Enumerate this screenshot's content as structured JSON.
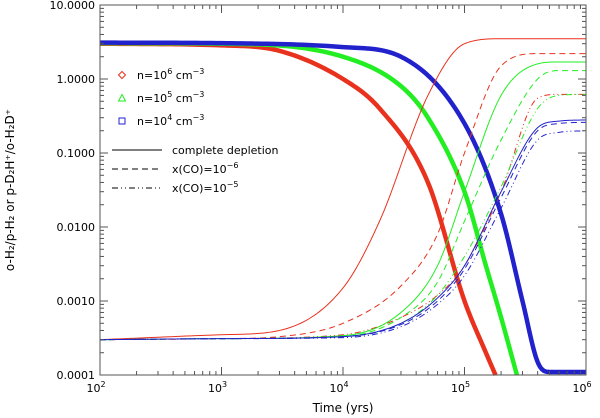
{
  "chart_data": {
    "type": "line",
    "title": "",
    "xlabel": "Time (yrs)",
    "ylabel": "o-H₂/p-H₂ or p-D₂H⁺/o-H₂D⁺",
    "xscale": "log",
    "yscale": "log",
    "xlim": [
      100,
      1000000
    ],
    "ylim": [
      0.0001,
      10
    ],
    "x_ticks": [
      {
        "value": 100,
        "base": "10",
        "exp": "2"
      },
      {
        "value": 1000,
        "base": "10",
        "exp": "3"
      },
      {
        "value": 10000,
        "base": "10",
        "exp": "4"
      },
      {
        "value": 100000,
        "base": "10",
        "exp": "5"
      },
      {
        "value": 1000000,
        "base": "10",
        "exp": "6"
      }
    ],
    "y_ticks": [
      {
        "value": 0.0001,
        "label": "0.0001"
      },
      {
        "value": 0.001,
        "label": "0.0010"
      },
      {
        "value": 0.01,
        "label": "0.0100"
      },
      {
        "value": 0.1,
        "label": "0.1000"
      },
      {
        "value": 1,
        "label": "1.0000"
      },
      {
        "value": 10,
        "label": "10.0000"
      }
    ],
    "colors": {
      "n1e6": "#e8321e",
      "n1e5": "#22ee22",
      "n1e4": "#2222cc"
    },
    "legend": {
      "placement": "top-left",
      "density_entries": [
        {
          "prefix": "n=10",
          "exp": "6",
          "suffix": " cm",
          "unit_exp": "−3",
          "symbol": "diamond",
          "color": "#e8321e"
        },
        {
          "prefix": "n=10",
          "exp": "5",
          "suffix": " cm",
          "unit_exp": "−3",
          "symbol": "triangle",
          "color": "#22ee22"
        },
        {
          "prefix": "n=10",
          "exp": "4",
          "suffix": " cm",
          "unit_exp": "−3",
          "symbol": "square",
          "color": "#2222cc"
        }
      ],
      "style_entries": [
        {
          "text": "complete depletion",
          "style": "solid"
        },
        {
          "text": "x(CO)=10",
          "exp": "−6",
          "style": "dashed"
        },
        {
          "text": "x(CO)=10",
          "exp": "−5",
          "style": "dashdot"
        }
      ]
    },
    "series": [
      {
        "name": "o-H2/p-H2, n=10^6 cm^-3",
        "color": "#e8321e",
        "style": "thick",
        "x": [
          100,
          1000,
          3000,
          10000,
          20000,
          50000,
          100000,
          150000,
          180000
        ],
        "y": [
          3.0,
          2.85,
          2.4,
          1.0,
          0.4,
          0.04,
          0.001,
          0.0002,
          0.0001
        ]
      },
      {
        "name": "o-H2/p-H2, n=10^5 cm^-3",
        "color": "#22ee22",
        "style": "thick",
        "x": [
          100,
          1000,
          10000,
          30000,
          50000,
          100000,
          150000,
          200000,
          270000
        ],
        "y": [
          3.05,
          3.0,
          2.0,
          0.8,
          0.3,
          0.03,
          0.003,
          0.0006,
          0.0001
        ]
      },
      {
        "name": "o-H2/p-H2, n=10^4 cm^-3",
        "color": "#2222cc",
        "style": "thick",
        "x": [
          100,
          1000,
          10000,
          30000,
          100000,
          200000,
          300000,
          400000,
          500000,
          1000000
        ],
        "y": [
          3.1,
          3.05,
          2.7,
          2.0,
          0.25,
          0.015,
          0.001,
          0.00015,
          0.00011,
          0.00011
        ]
      },
      {
        "name": "p-D2H+/o-H2D+, n=10^6, complete depletion",
        "color": "#e8321e",
        "style": "solid",
        "x": [
          100,
          1000,
          3000,
          10000,
          20000,
          50000,
          100000,
          200000,
          400000,
          1000000
        ],
        "y": [
          0.0003,
          0.00035,
          0.0004,
          0.0015,
          0.012,
          0.6,
          3.0,
          3.5,
          3.5,
          3.5
        ]
      },
      {
        "name": "p-D2H+/o-H2D+, n=10^6, x(CO)=10^-6",
        "color": "#e8321e",
        "style": "dashed",
        "x": [
          100,
          1000,
          3000,
          10000,
          30000,
          60000,
          100000,
          200000,
          400000,
          1000000
        ],
        "y": [
          0.0003,
          0.00031,
          0.00033,
          0.0005,
          0.0016,
          0.008,
          0.1,
          1.5,
          2.2,
          2.2
        ]
      },
      {
        "name": "p-D2H+/o-H2D+, n=10^6, x(CO)=10^-5",
        "color": "#e8321e",
        "style": "dashdot",
        "x": [
          100,
          1000,
          10000,
          30000,
          60000,
          100000,
          200000,
          400000,
          600000,
          1000000
        ],
        "y": [
          0.0003,
          0.00031,
          0.00035,
          0.0006,
          0.0012,
          0.003,
          0.03,
          0.55,
          0.62,
          0.62
        ]
      },
      {
        "name": "p-D2H+/o-H2D+, n=10^5, complete depletion",
        "color": "#22ee22",
        "style": "solid",
        "x": [
          100,
          1000,
          10000,
          30000,
          60000,
          100000,
          200000,
          400000,
          600000,
          1000000
        ],
        "y": [
          0.0003,
          0.00031,
          0.00034,
          0.0007,
          0.003,
          0.03,
          0.6,
          1.6,
          1.7,
          1.7
        ]
      },
      {
        "name": "p-D2H+/o-H2D+, n=10^5, x(CO)=10^-6",
        "color": "#22ee22",
        "style": "dashed",
        "x": [
          100,
          1000,
          10000,
          30000,
          60000,
          100000,
          200000,
          400000,
          600000,
          1000000
        ],
        "y": [
          0.0003,
          0.00031,
          0.00033,
          0.0006,
          0.0018,
          0.012,
          0.15,
          1.0,
          1.3,
          1.3
        ]
      },
      {
        "name": "p-D2H+/o-H2D+, n=10^5, x(CO)=10^-5",
        "color": "#22ee22",
        "style": "dashdot",
        "x": [
          100,
          1000,
          10000,
          30000,
          60000,
          100000,
          200000,
          400000,
          600000,
          1000000
        ],
        "y": [
          0.0003,
          0.00031,
          0.00033,
          0.0005,
          0.0012,
          0.004,
          0.035,
          0.4,
          0.6,
          0.62
        ]
      },
      {
        "name": "p-D2H+/o-H2D+, n=10^4, complete depletion",
        "color": "#2222cc",
        "style": "solid",
        "x": [
          100,
          1000,
          10000,
          30000,
          60000,
          100000,
          200000,
          400000,
          600000,
          1000000
        ],
        "y": [
          0.0003,
          0.00031,
          0.00033,
          0.0005,
          0.0011,
          0.003,
          0.03,
          0.22,
          0.27,
          0.28
        ]
      },
      {
        "name": "p-D2H+/o-H2D+, n=10^4, x(CO)=10^-6",
        "color": "#2222cc",
        "style": "dashed",
        "x": [
          100,
          1000,
          10000,
          30000,
          60000,
          100000,
          200000,
          400000,
          600000,
          1000000
        ],
        "y": [
          0.0003,
          0.00031,
          0.00033,
          0.00048,
          0.001,
          0.0027,
          0.025,
          0.2,
          0.25,
          0.26
        ]
      },
      {
        "name": "p-D2H+/o-H2D+, n=10^4, x(CO)=10^-5",
        "color": "#2222cc",
        "style": "dashdot",
        "x": [
          100,
          1000,
          10000,
          30000,
          60000,
          100000,
          200000,
          400000,
          600000,
          1000000
        ],
        "y": [
          0.0003,
          0.00031,
          0.00032,
          0.00045,
          0.0009,
          0.0022,
          0.018,
          0.15,
          0.19,
          0.2
        ]
      }
    ]
  }
}
